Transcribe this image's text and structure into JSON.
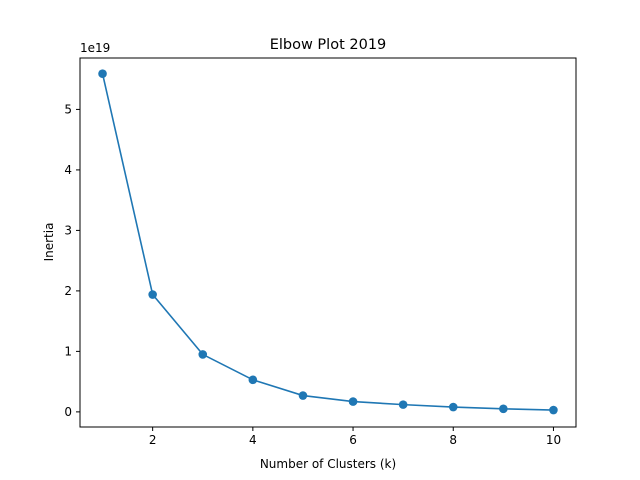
{
  "chart_data": {
    "type": "line",
    "title": "Elbow Plot 2019",
    "xlabel": "Number of Clusters (k)",
    "ylabel": "Inertia",
    "y_offset_label": "1e19",
    "xlim": [
      0.55,
      10.45
    ],
    "ylim": [
      -0.25,
      5.85
    ],
    "x_ticks": [
      2,
      4,
      6,
      8,
      10
    ],
    "y_ticks": [
      0,
      1,
      2,
      3,
      4,
      5
    ],
    "grid": false,
    "line_color": "#1f77b4",
    "marker": "circle",
    "series": [
      {
        "x": [
          1,
          2,
          3,
          4,
          5,
          6,
          7,
          8,
          9,
          10
        ],
        "values": [
          5.59,
          1.94,
          0.95,
          0.53,
          0.27,
          0.17,
          0.12,
          0.08,
          0.05,
          0.03
        ]
      }
    ]
  }
}
